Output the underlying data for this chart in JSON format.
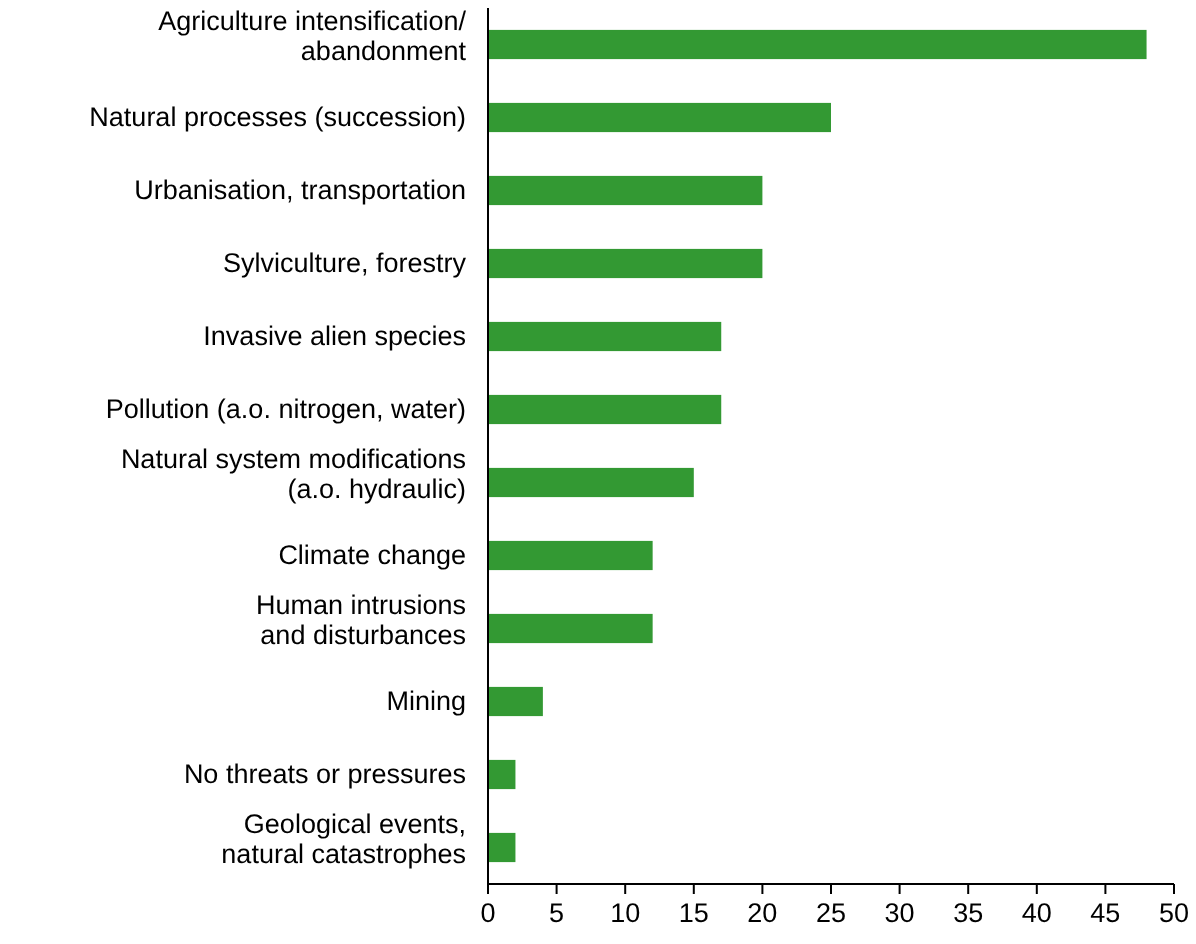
{
  "chart_data": {
    "type": "bar",
    "orientation": "horizontal",
    "categories": [
      "Agriculture intensification/\nabandonment",
      "Natural processes (succession)",
      "Urbanisation, transportation",
      "Sylviculture, forestry",
      "Invasive alien species",
      "Pollution (a.o. nitrogen, water)",
      "Natural system modifications\n(a.o. hydraulic)",
      "Climate change",
      "Human intrusions\nand disturbances",
      "Mining",
      "No threats or pressures",
      "Geological events,\nnatural catastrophes"
    ],
    "values": [
      48,
      25,
      20,
      20,
      17,
      17,
      15,
      12,
      12,
      4,
      2,
      2
    ],
    "color": "#339933",
    "xlim": [
      0,
      50
    ],
    "xticks": [
      0,
      5,
      10,
      15,
      20,
      25,
      30,
      35,
      40,
      45,
      50
    ],
    "grid": false
  }
}
